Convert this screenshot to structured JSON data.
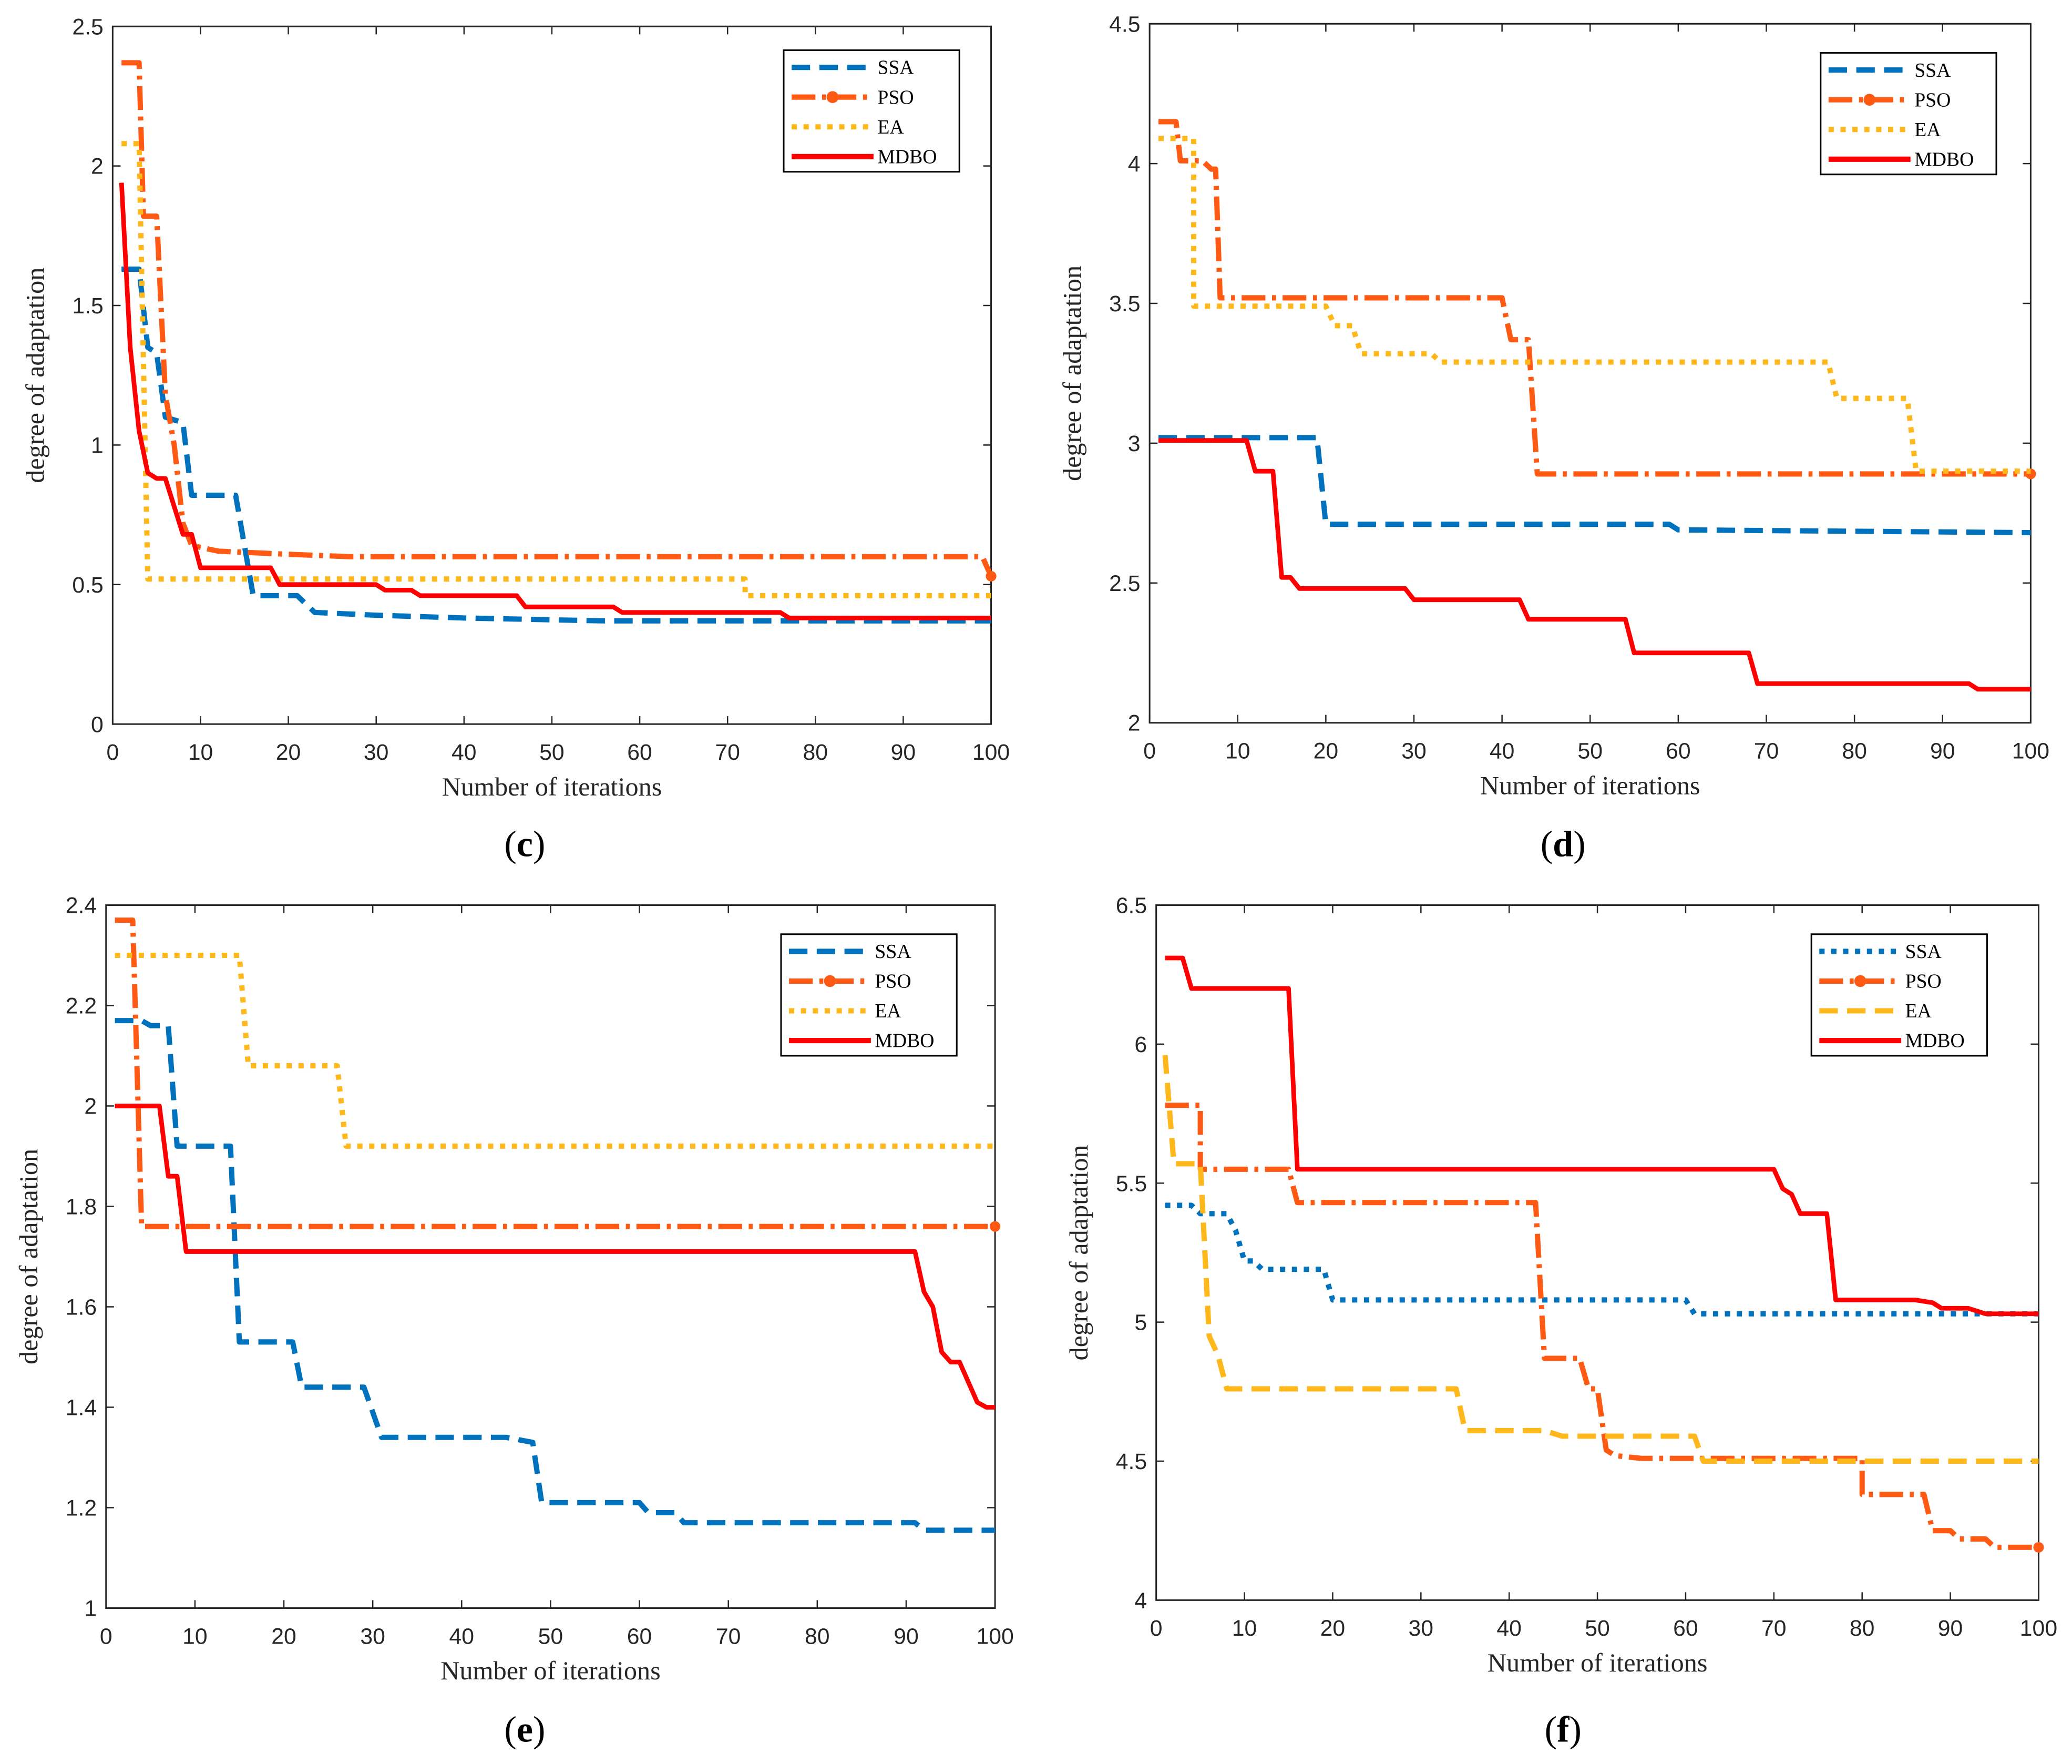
{
  "colors": {
    "SSA": "#0072BD",
    "PSO": "#FF5A14",
    "EA": "#FFB81C",
    "MDBO": "#FF0000"
  },
  "chart_data": [
    {
      "type": "line",
      "panel": "c",
      "caption_open": "(",
      "caption_letter": "c",
      "caption_close": ")",
      "xlabel": "Number of iterations",
      "ylabel": "degree of adaptation",
      "xlim": [
        0,
        100
      ],
      "ylim": [
        0,
        2.5
      ],
      "xticks": [
        0,
        10,
        20,
        30,
        40,
        50,
        60,
        70,
        80,
        90,
        100
      ],
      "yticks": [
        0,
        0.5,
        1,
        1.5,
        2,
        2.5
      ],
      "ytick_labels": [
        "0",
        "0.5",
        "1",
        "1.5",
        "2",
        "2.5"
      ],
      "legend": "top-right",
      "series": [
        {
          "name": "SSA",
          "style": "dashed",
          "points": [
            [
              1,
              1.63
            ],
            [
              3,
              1.63
            ],
            [
              4,
              1.35
            ],
            [
              5,
              1.33
            ],
            [
              6,
              1.1
            ],
            [
              8,
              1.08
            ],
            [
              9,
              0.82
            ],
            [
              14,
              0.82
            ],
            [
              16,
              0.46
            ],
            [
              21,
              0.46
            ],
            [
              23,
              0.4
            ],
            [
              30,
              0.39
            ],
            [
              40,
              0.38
            ],
            [
              56,
              0.37
            ],
            [
              100,
              0.37
            ]
          ]
        },
        {
          "name": "PSO",
          "style": "dashdot-circle",
          "points": [
            [
              1,
              2.37
            ],
            [
              3,
              2.37
            ],
            [
              3.5,
              1.82
            ],
            [
              5,
              1.82
            ],
            [
              6,
              1.18
            ],
            [
              7,
              1.0
            ],
            [
              8,
              0.72
            ],
            [
              9,
              0.64
            ],
            [
              12,
              0.62
            ],
            [
              19,
              0.61
            ],
            [
              27,
              0.6
            ],
            [
              99,
              0.6
            ],
            [
              100,
              0.53
            ]
          ]
        },
        {
          "name": "EA",
          "style": "dotted",
          "points": [
            [
              1,
              2.08
            ],
            [
              3,
              2.08
            ],
            [
              4,
              0.52
            ],
            [
              72,
              0.52
            ],
            [
              72,
              0.46
            ],
            [
              100,
              0.46
            ]
          ]
        },
        {
          "name": "MDBO",
          "style": "solid",
          "points": [
            [
              1,
              1.94
            ],
            [
              2,
              1.35
            ],
            [
              3,
              1.05
            ],
            [
              4,
              0.9
            ],
            [
              5,
              0.88
            ],
            [
              6,
              0.88
            ],
            [
              8,
              0.68
            ],
            [
              9,
              0.68
            ],
            [
              10,
              0.56
            ],
            [
              18,
              0.56
            ],
            [
              19,
              0.5
            ],
            [
              30,
              0.5
            ],
            [
              31,
              0.48
            ],
            [
              34,
              0.48
            ],
            [
              35,
              0.46
            ],
            [
              46,
              0.46
            ],
            [
              47,
              0.42
            ],
            [
              57,
              0.42
            ],
            [
              58,
              0.4
            ],
            [
              76,
              0.4
            ],
            [
              77,
              0.38
            ],
            [
              100,
              0.38
            ]
          ]
        }
      ]
    },
    {
      "type": "line",
      "panel": "d",
      "caption_open": "(",
      "caption_letter": "d",
      "caption_close": ")",
      "xlabel": "Number of iterations",
      "ylabel": "degree of adaptation",
      "xlim": [
        0,
        100
      ],
      "ylim": [
        2,
        4.5
      ],
      "xticks": [
        0,
        10,
        20,
        30,
        40,
        50,
        60,
        70,
        80,
        90,
        100
      ],
      "yticks": [
        2,
        2.5,
        3,
        3.5,
        4,
        4.5
      ],
      "ytick_labels": [
        "2",
        "2.5",
        "3",
        "3.5",
        "4",
        "4.5"
      ],
      "legend": "top-right",
      "series": [
        {
          "name": "SSA",
          "style": "dashed",
          "points": [
            [
              1,
              3.02
            ],
            [
              19,
              3.02
            ],
            [
              20,
              2.71
            ],
            [
              59,
              2.71
            ],
            [
              60,
              2.69
            ],
            [
              100,
              2.68
            ]
          ]
        },
        {
          "name": "PSO",
          "style": "dashdot-circle",
          "points": [
            [
              1,
              4.15
            ],
            [
              3,
              4.15
            ],
            [
              3.5,
              4.01
            ],
            [
              6,
              4.01
            ],
            [
              7,
              3.98
            ],
            [
              7.5,
              3.98
            ],
            [
              8,
              3.52
            ],
            [
              40,
              3.52
            ],
            [
              41,
              3.37
            ],
            [
              43,
              3.37
            ],
            [
              44,
              2.89
            ],
            [
              100,
              2.89
            ]
          ]
        },
        {
          "name": "EA",
          "style": "dotted",
          "points": [
            [
              1,
              4.09
            ],
            [
              5,
              4.09
            ],
            [
              5,
              3.49
            ],
            [
              20,
              3.49
            ],
            [
              21,
              3.42
            ],
            [
              23,
              3.42
            ],
            [
              24,
              3.32
            ],
            [
              32,
              3.32
            ],
            [
              33,
              3.29
            ],
            [
              77,
              3.29
            ],
            [
              78,
              3.16
            ],
            [
              86,
              3.16
            ],
            [
              87,
              2.9
            ],
            [
              100,
              2.9
            ]
          ]
        },
        {
          "name": "MDBO",
          "style": "solid",
          "points": [
            [
              1,
              3.01
            ],
            [
              11,
              3.01
            ],
            [
              12,
              2.9
            ],
            [
              14,
              2.9
            ],
            [
              15,
              2.52
            ],
            [
              16,
              2.52
            ],
            [
              17,
              2.48
            ],
            [
              29,
              2.48
            ],
            [
              30,
              2.44
            ],
            [
              42,
              2.44
            ],
            [
              43,
              2.37
            ],
            [
              54,
              2.37
            ],
            [
              55,
              2.25
            ],
            [
              68,
              2.25
            ],
            [
              69,
              2.14
            ],
            [
              93,
              2.14
            ],
            [
              94,
              2.12
            ],
            [
              100,
              2.12
            ]
          ]
        }
      ]
    },
    {
      "type": "line",
      "panel": "e",
      "caption_open": "(",
      "caption_letter": "e",
      "caption_close": ")",
      "xlabel": "Number of iterations",
      "ylabel": "degree of adaptation",
      "xlim": [
        0,
        100
      ],
      "ylim": [
        1,
        2.4
      ],
      "xticks": [
        0,
        10,
        20,
        30,
        40,
        50,
        60,
        70,
        80,
        90,
        100
      ],
      "yticks": [
        1,
        1.2,
        1.4,
        1.6,
        1.8,
        2,
        2.2,
        2.4
      ],
      "ytick_labels": [
        "1",
        "1.2",
        "1.4",
        "1.6",
        "1.8",
        "2",
        "2.2",
        "2.4"
      ],
      "legend": "top-right",
      "series": [
        {
          "name": "SSA",
          "style": "dashed",
          "points": [
            [
              1,
              2.17
            ],
            [
              4,
              2.17
            ],
            [
              5,
              2.16
            ],
            [
              7,
              2.16
            ],
            [
              8,
              1.92
            ],
            [
              14,
              1.92
            ],
            [
              15,
              1.53
            ],
            [
              21,
              1.53
            ],
            [
              22,
              1.44
            ],
            [
              29,
              1.44
            ],
            [
              31,
              1.34
            ],
            [
              45,
              1.34
            ],
            [
              48,
              1.33
            ],
            [
              49,
              1.21
            ],
            [
              60,
              1.21
            ],
            [
              61,
              1.19
            ],
            [
              64,
              1.19
            ],
            [
              65,
              1.17
            ],
            [
              91,
              1.17
            ],
            [
              92,
              1.155
            ],
            [
              100,
              1.155
            ]
          ]
        },
        {
          "name": "PSO",
          "style": "dashdot-circle",
          "points": [
            [
              1,
              2.37
            ],
            [
              3,
              2.37
            ],
            [
              4,
              1.76
            ],
            [
              100,
              1.76
            ]
          ]
        },
        {
          "name": "EA",
          "style": "dotted",
          "points": [
            [
              1,
              2.3
            ],
            [
              15,
              2.3
            ],
            [
              16,
              2.08
            ],
            [
              26,
              2.08
            ],
            [
              27,
              1.92
            ],
            [
              100,
              1.92
            ]
          ]
        },
        {
          "name": "MDBO",
          "style": "solid",
          "points": [
            [
              1,
              2.0
            ],
            [
              6,
              2.0
            ],
            [
              7,
              1.86
            ],
            [
              8,
              1.86
            ],
            [
              9,
              1.71
            ],
            [
              91,
              1.71
            ],
            [
              92,
              1.63
            ],
            [
              93,
              1.6
            ],
            [
              94,
              1.51
            ],
            [
              95,
              1.49
            ],
            [
              96,
              1.49
            ],
            [
              98,
              1.41
            ],
            [
              99,
              1.4
            ],
            [
              100,
              1.4
            ]
          ]
        }
      ]
    },
    {
      "type": "line",
      "panel": "f",
      "caption_open": "(",
      "caption_letter": "f",
      "caption_close": ")",
      "xlabel": "Number of iterations",
      "ylabel": "degree of adaptation",
      "xlim": [
        0,
        100
      ],
      "ylim": [
        4,
        6.5
      ],
      "xticks": [
        0,
        10,
        20,
        30,
        40,
        50,
        60,
        70,
        80,
        90,
        100
      ],
      "yticks": [
        4,
        4.5,
        5,
        5.5,
        6,
        6.5
      ],
      "ytick_labels": [
        "4",
        "4.5",
        "5",
        "5.5",
        "6",
        "6.5"
      ],
      "legend": "top-right",
      "series": [
        {
          "name": "SSA",
          "style": "dotted",
          "points": [
            [
              1,
              5.42
            ],
            [
              4,
              5.42
            ],
            [
              5,
              5.39
            ],
            [
              8,
              5.39
            ],
            [
              9,
              5.33
            ],
            [
              10,
              5.22
            ],
            [
              11,
              5.22
            ],
            [
              12,
              5.19
            ],
            [
              19,
              5.19
            ],
            [
              20,
              5.08
            ],
            [
              60,
              5.08
            ],
            [
              61,
              5.03
            ],
            [
              100,
              5.03
            ]
          ]
        },
        {
          "name": "PSO",
          "style": "dashdot-circle",
          "points": [
            [
              1,
              5.78
            ],
            [
              5,
              5.78
            ],
            [
              5,
              5.55
            ],
            [
              15,
              5.55
            ],
            [
              16,
              5.43
            ],
            [
              43,
              5.43
            ],
            [
              44,
              4.87
            ],
            [
              48,
              4.87
            ],
            [
              49,
              4.76
            ],
            [
              50,
              4.76
            ],
            [
              51,
              4.54
            ],
            [
              52,
              4.52
            ],
            [
              55,
              4.51
            ],
            [
              80,
              4.51
            ],
            [
              80,
              4.38
            ],
            [
              87,
              4.38
            ],
            [
              88,
              4.25
            ],
            [
              90,
              4.25
            ],
            [
              91,
              4.22
            ],
            [
              94,
              4.22
            ],
            [
              95,
              4.19
            ],
            [
              100,
              4.19
            ]
          ]
        },
        {
          "name": "EA",
          "style": "dashed",
          "points": [
            [
              1,
              5.96
            ],
            [
              2,
              5.57
            ],
            [
              5,
              5.57
            ],
            [
              6,
              4.95
            ],
            [
              7,
              4.88
            ],
            [
              8,
              4.76
            ],
            [
              34,
              4.76
            ],
            [
              35,
              4.61
            ],
            [
              44,
              4.61
            ],
            [
              46,
              4.59
            ],
            [
              61,
              4.59
            ],
            [
              62,
              4.5
            ],
            [
              100,
              4.5
            ]
          ]
        },
        {
          "name": "MDBO",
          "style": "solid",
          "points": [
            [
              1,
              6.31
            ],
            [
              3,
              6.31
            ],
            [
              4,
              6.2
            ],
            [
              15,
              6.2
            ],
            [
              16,
              5.55
            ],
            [
              70,
              5.55
            ],
            [
              71,
              5.48
            ],
            [
              72,
              5.46
            ],
            [
              73,
              5.39
            ],
            [
              76,
              5.39
            ],
            [
              77,
              5.08
            ],
            [
              86,
              5.08
            ],
            [
              88,
              5.07
            ],
            [
              89,
              5.05
            ],
            [
              92,
              5.05
            ],
            [
              94,
              5.03
            ],
            [
              100,
              5.03
            ]
          ]
        }
      ]
    }
  ]
}
